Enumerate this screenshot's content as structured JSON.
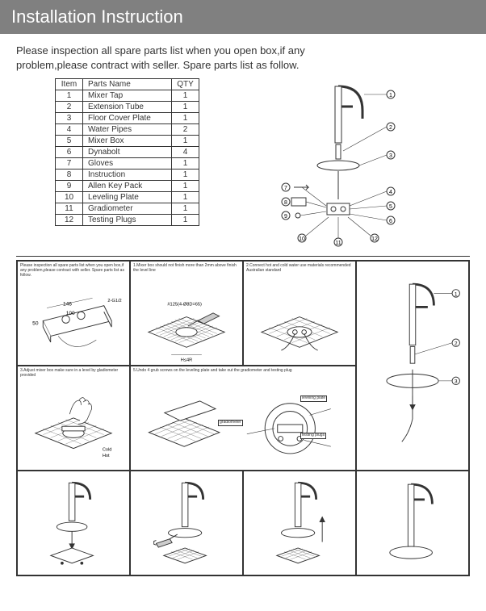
{
  "header": {
    "title": "Installation Instruction"
  },
  "intro": "Please inspection all spare parts list when you open box,if any problem,please contract with seller. Spare parts list as follow.",
  "parts_table": {
    "columns": [
      "Item",
      "Parts Name",
      "QTY"
    ],
    "rows": [
      [
        "1",
        "Mixer Tap",
        "1"
      ],
      [
        "2",
        "Extension Tube",
        "1"
      ],
      [
        "3",
        "Floor Cover Plate",
        "1"
      ],
      [
        "4",
        "Water Pipes",
        "2"
      ],
      [
        "5",
        "Mixer Box",
        "1"
      ],
      [
        "6",
        "Dynabolt",
        "4"
      ],
      [
        "7",
        "Gloves",
        "1"
      ],
      [
        "8",
        "Instruction",
        "1"
      ],
      [
        "9",
        "Allen Key Pack",
        "1"
      ],
      [
        "10",
        "Leveling Plate",
        "1"
      ],
      [
        "11",
        "Gradiometer",
        "1"
      ],
      [
        "12",
        "Testing Plugs",
        "1"
      ]
    ]
  },
  "exploded": {
    "callouts": [
      "①",
      "②",
      "③",
      "④",
      "⑤",
      "⑥",
      "⑦",
      "⑧",
      "⑨",
      "⑩",
      "⑪",
      "⑫"
    ]
  },
  "steps": {
    "s0": "Please inspection all spare parts list when you open box,if any problem,please contract with seller. Spare parts list as follow.",
    "s1": "1.Mixer box should not finish more than 2mm above finish the level line",
    "s2": "2.Connect hot and cold water use materials recommended Australian standard",
    "s3": "3.Adjust mixer box make sure in a level by gladiometer provided",
    "s5": "5.Undo 4 grub screws on the leveling plate and take out the gradiometer and testing plug",
    "dim_146": "146",
    "dim_100": "100",
    "dim_50": "50",
    "dim_mark": "#125(4-Ø8D=65)",
    "dim_h": "H≤4R",
    "dim_2g12": "2-G1/2",
    "cold": "Cold",
    "hot": "Hot",
    "leveling_plate": "leveling plate",
    "gradiometer": "gradiometer",
    "testing_plugs": "testing plugs"
  },
  "colors": {
    "header_bg": "#808080",
    "header_text": "#ffffff",
    "border": "#333333",
    "text": "#333333",
    "bg": "#ffffff"
  }
}
